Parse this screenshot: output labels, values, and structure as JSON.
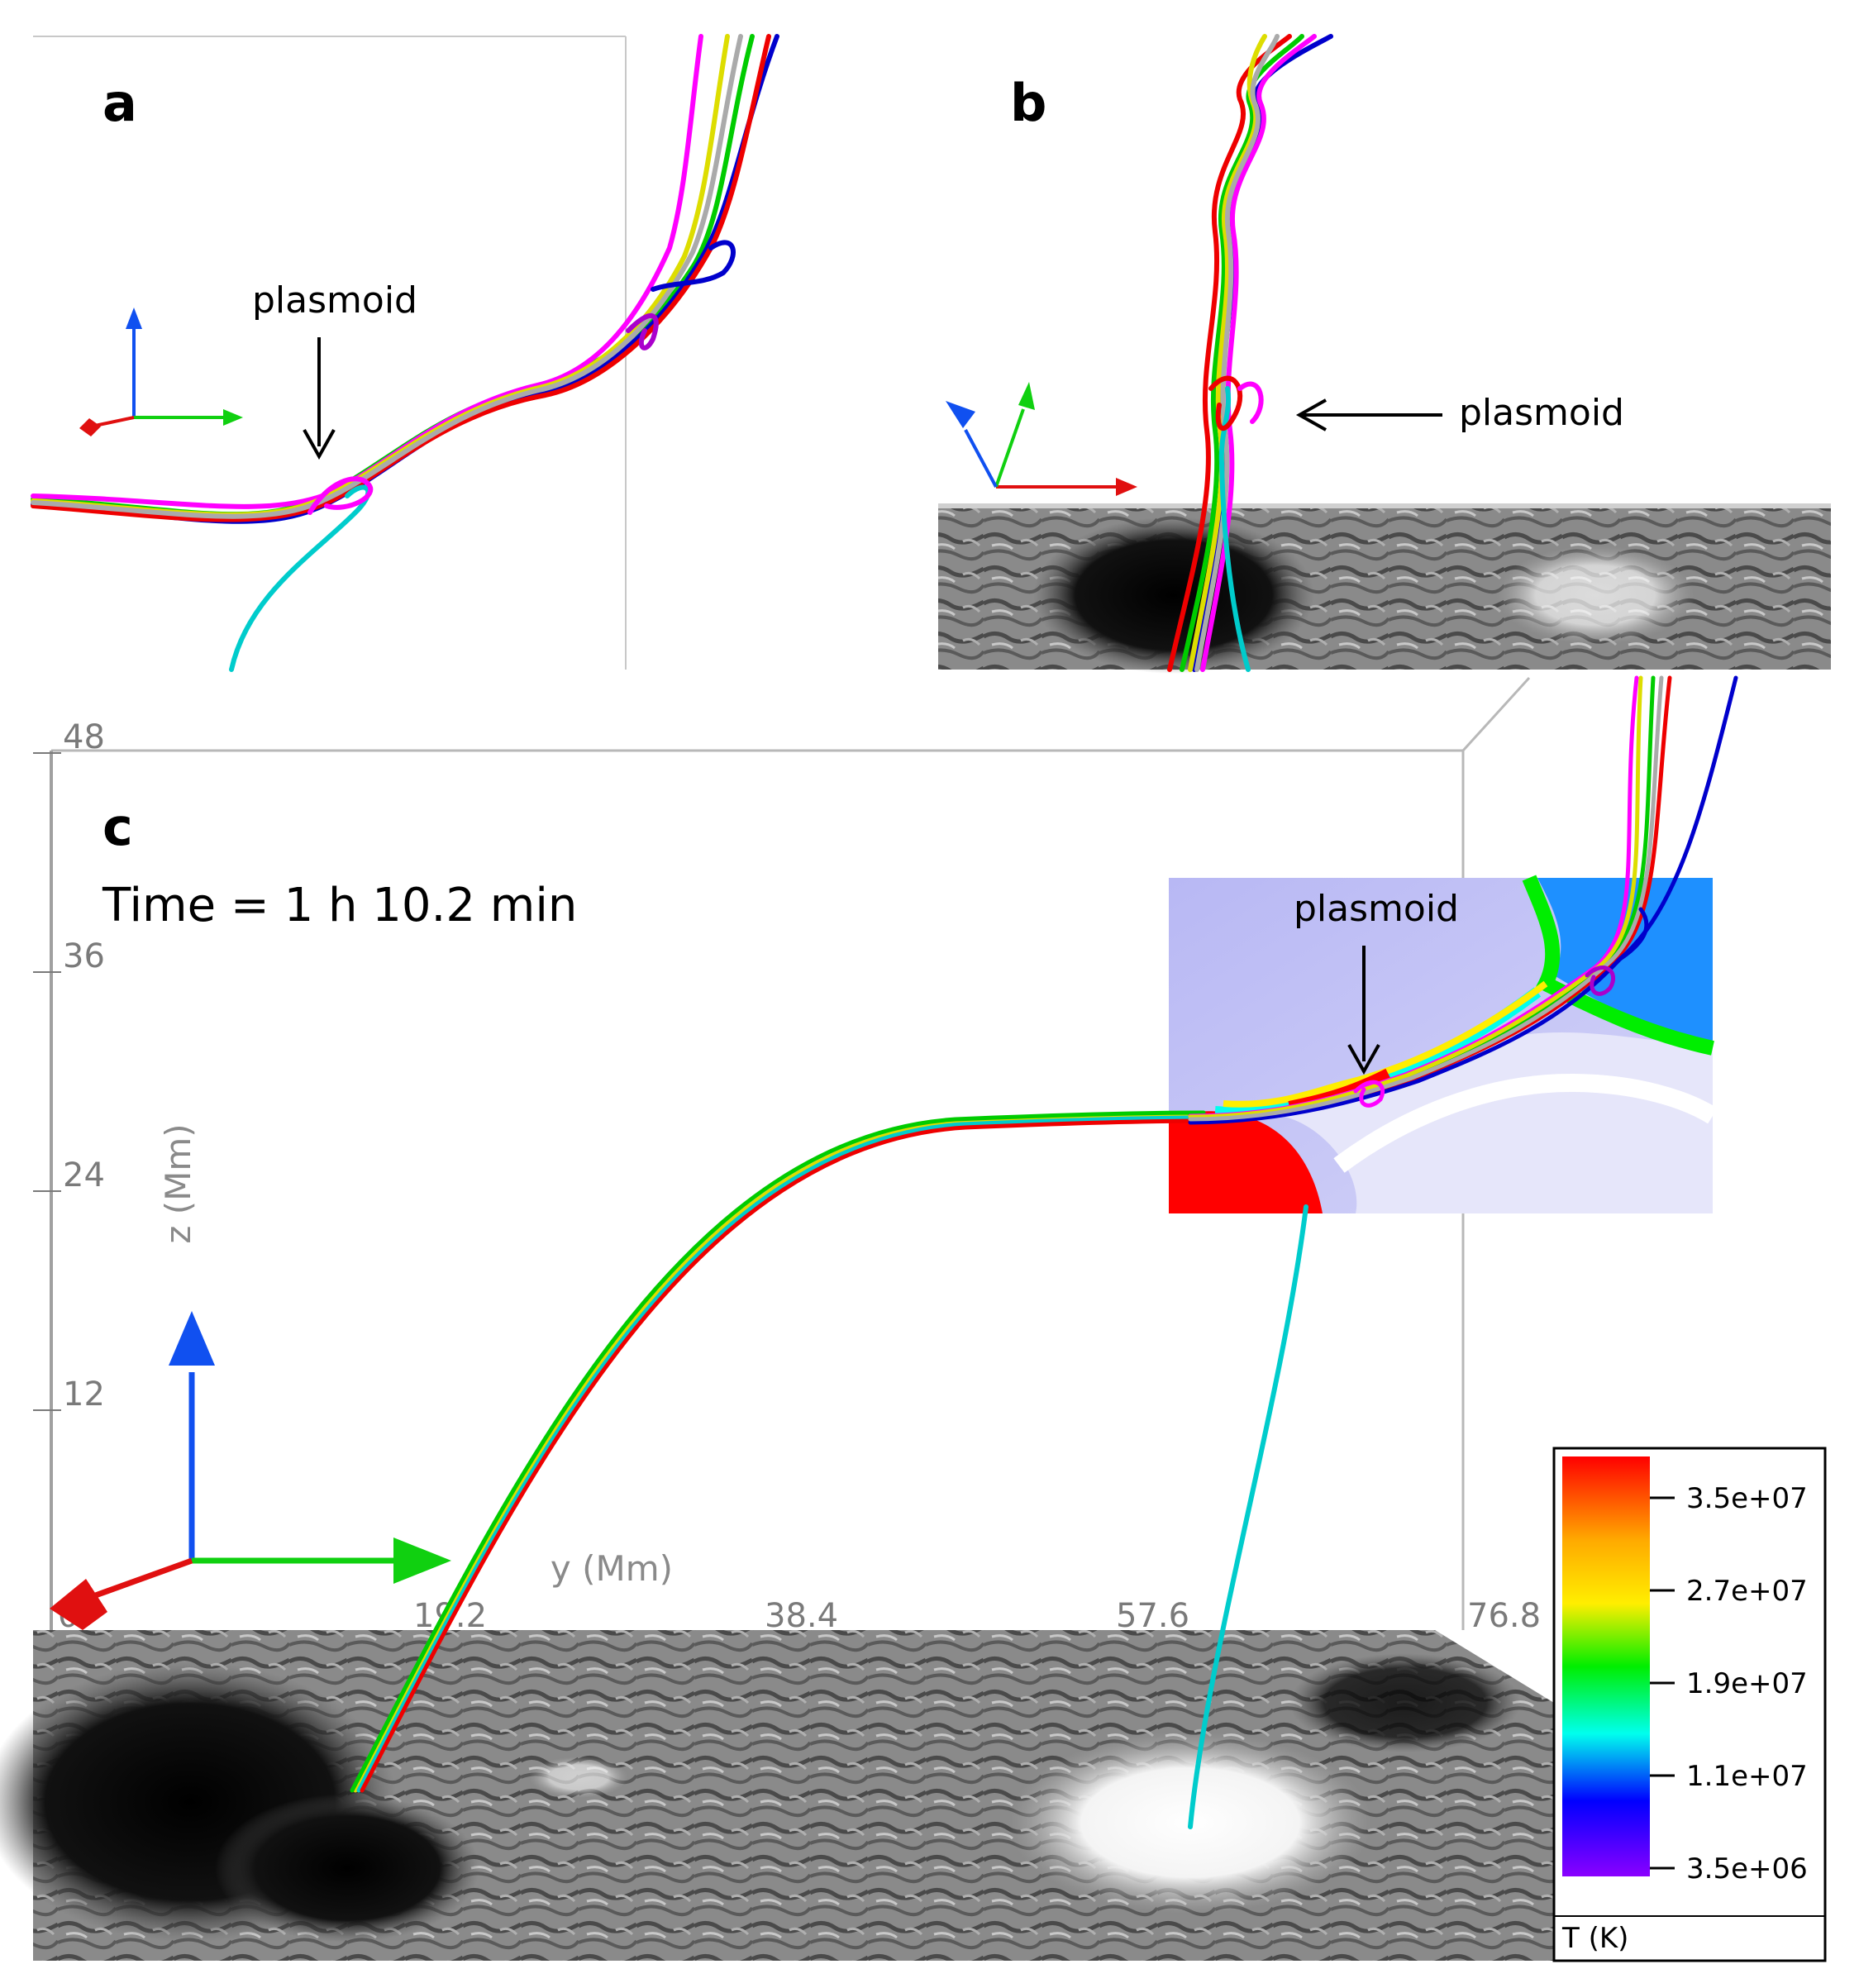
{
  "panels": {
    "a": {
      "label": "a",
      "annotation": "plasmoid"
    },
    "b": {
      "label": "b",
      "annotation": "plasmoid"
    },
    "c": {
      "label": "c",
      "time_text": "Time = 1 h 10.2 min",
      "annotation": "plasmoid",
      "z_axis": {
        "title": "z (Mm)",
        "ticks": [
          "12",
          "24",
          "36",
          "48"
        ]
      },
      "y_axis": {
        "title": "y (Mm)",
        "ticks": [
          "0",
          "19.2",
          "38.4",
          "57.6",
          "76.8"
        ]
      }
    }
  },
  "colorbar": {
    "title": "T (K)",
    "ticks": [
      "3.5e+07",
      "2.7e+07",
      "1.9e+07",
      "1.1e+07",
      "3.5e+06"
    ],
    "colors": [
      "#ff0000",
      "#ffee00",
      "#00ee00",
      "#00ffee",
      "#0000ff",
      "#8a00ff"
    ]
  },
  "field_line_colors": [
    "#ff00ff",
    "#dddd00",
    "#aaaaaa",
    "#00cc00",
    "#ee0000",
    "#0000cc",
    "#00cccc"
  ],
  "axis_arrow_colors": {
    "x": "#e01010",
    "y": "#10d010",
    "z": "#1050f0"
  }
}
